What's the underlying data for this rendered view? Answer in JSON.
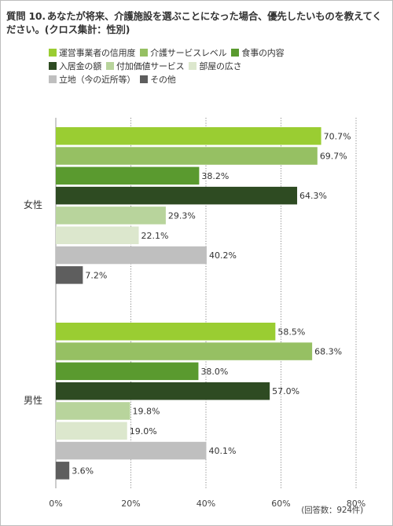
{
  "title": {
    "question_number": "質問 10.",
    "text": "あなたが将来、介護施設を選ぶことになった場合、優先したいものを教えてください。(クロス集計：性別)"
  },
  "note": "(回答数：924件)",
  "chart_data": {
    "type": "bar",
    "orientation": "horizontal",
    "categories": [
      "女性",
      "男性"
    ],
    "series": [
      {
        "name": "運営事業者の信用度",
        "color": "#9acd32",
        "values": [
          70.7,
          58.5
        ]
      },
      {
        "name": "介護サービスレベル",
        "color": "#96c063",
        "values": [
          69.7,
          68.3
        ]
      },
      {
        "name": "食事の内容",
        "color": "#5a9a2f",
        "values": [
          38.2,
          38.0
        ]
      },
      {
        "name": "入居金の額",
        "color": "#2e4b22",
        "values": [
          64.3,
          57.0
        ]
      },
      {
        "name": "付加価値サービス",
        "color": "#b8d49c",
        "values": [
          29.3,
          19.8
        ]
      },
      {
        "name": "部屋の広さ",
        "color": "#dce7cd",
        "values": [
          22.1,
          19.0
        ]
      },
      {
        "name": "立地（今の近所等）",
        "color": "#bfbfbf",
        "values": [
          40.2,
          40.1
        ]
      },
      {
        "name": "その他",
        "color": "#5e5e5e",
        "values": [
          7.2,
          3.6
        ]
      }
    ],
    "value_suffix": "%",
    "xlim": [
      0,
      80
    ],
    "xticks": [
      0,
      20,
      40,
      60,
      80
    ],
    "xtick_labels": [
      "0%",
      "20%",
      "40%",
      "60%",
      "80%"
    ],
    "grid": true,
    "legend_position": "top"
  }
}
